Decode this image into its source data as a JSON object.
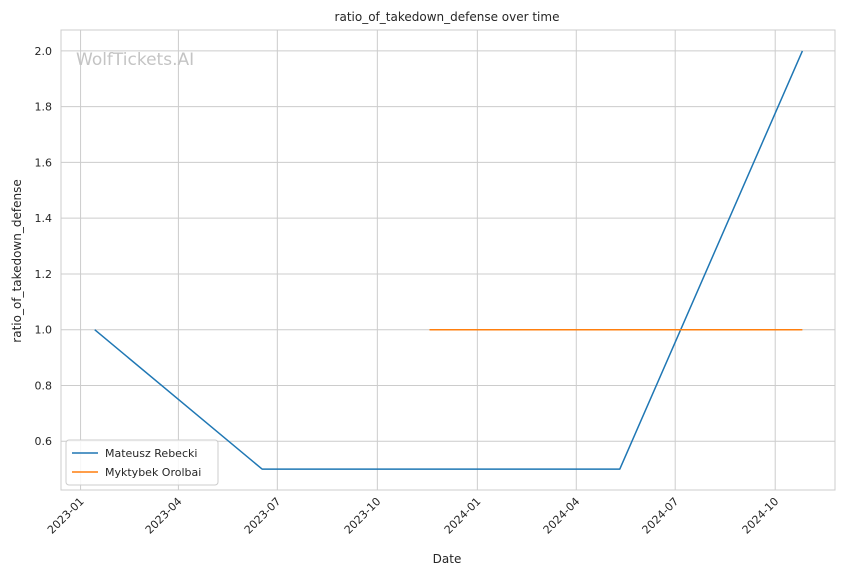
{
  "chart_data": {
    "type": "line",
    "title": "ratio_of_takedown_defense over time",
    "xlabel": "Date",
    "ylabel": "ratio_of_takedown_defense",
    "x_ticks": [
      "2023-01",
      "2023-04",
      "2023-07",
      "2023-10",
      "2024-01",
      "2024-04",
      "2024-07",
      "2024-10"
    ],
    "y_ticks": [
      "0.6",
      "0.8",
      "1.0",
      "1.2",
      "1.4",
      "1.6",
      "1.8",
      "2.0"
    ],
    "xlim": [
      "2022-12-14",
      "2024-11-25"
    ],
    "ylim": [
      0.425,
      2.075
    ],
    "grid": true,
    "legend_position": "lower-left",
    "watermark": "WolfTickets.AI",
    "series": [
      {
        "name": "Mateusz Rebecki",
        "color": "#1f77b4",
        "points": [
          {
            "x": "2023-01-14",
            "y": 1.0
          },
          {
            "x": "2023-06-17",
            "y": 0.5
          },
          {
            "x": "2024-05-11",
            "y": 0.5
          },
          {
            "x": "2024-10-26",
            "y": 2.0
          }
        ]
      },
      {
        "name": "Myktybek Orolbai",
        "color": "#ff7f0e",
        "points": [
          {
            "x": "2023-11-18",
            "y": 1.0
          },
          {
            "x": "2024-10-26",
            "y": 1.0
          }
        ]
      }
    ]
  }
}
